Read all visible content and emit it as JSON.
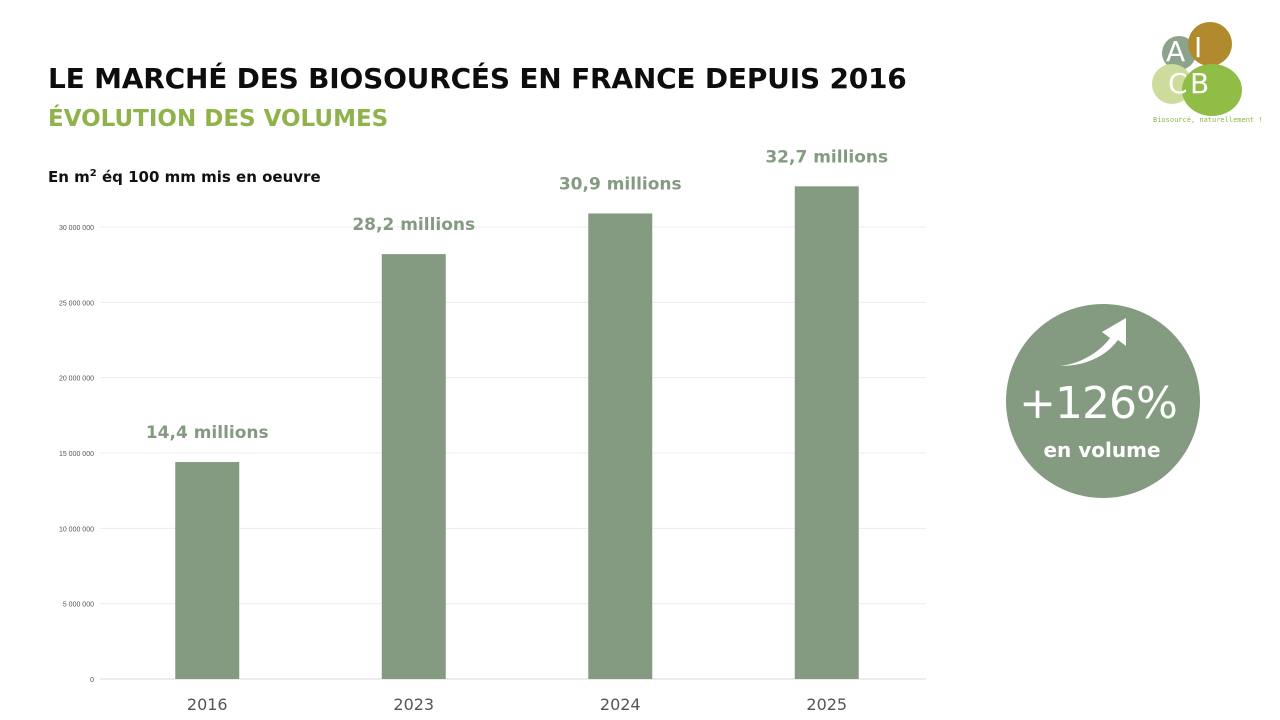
{
  "header": {
    "title": "LE MARCHÉ DES BIOSOURCÉS EN FRANCE DEPUIS 2016",
    "subtitle": "ÉVOLUTION DES VOLUMES",
    "unit_prefix": "En m",
    "unit_sup": "2",
    "unit_suffix": " éq 100 mm mis en oeuvre"
  },
  "badge": {
    "value": "+126%",
    "label": "en volume",
    "icon": "trending-up-arrow-icon"
  },
  "logo": {
    "letters": [
      "A",
      "I",
      "C",
      "B"
    ],
    "tagline": "Biosourcé, naturellement !",
    "colors": [
      "#8aa38a",
      "#b28a2e",
      "#cddc9a",
      "#8fbd45"
    ]
  },
  "colors": {
    "bar": "#849b82",
    "data_label": "#849b82",
    "grid": "#ececec",
    "title": "#0d0d0d",
    "subtitle": "#8fb34a"
  },
  "chart_data": {
    "type": "bar",
    "categories": [
      "2016",
      "2023",
      "2024",
      "2025"
    ],
    "values": [
      14400000,
      28200000,
      30900000,
      32700000
    ],
    "data_labels": [
      "14,4 millions",
      "28,2 millions",
      "30,9 millions",
      "32,7 millions"
    ],
    "yticks": [
      0,
      5000000,
      10000000,
      15000000,
      20000000,
      25000000,
      30000000
    ],
    "ytick_labels": [
      "0",
      "5 000 000",
      "10 000 000",
      "15 000 000",
      "20 000 000",
      "25 000 000",
      "30 000 000"
    ],
    "ylim": [
      0,
      30000000
    ],
    "grid": true,
    "legend": "none"
  }
}
